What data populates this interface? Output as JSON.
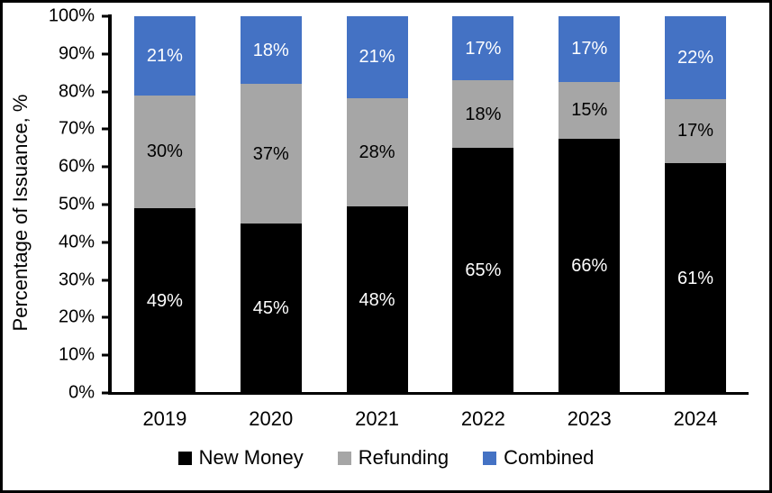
{
  "chart_data": {
    "type": "bar",
    "stacked": true,
    "title": "",
    "xlabel": "",
    "ylabel": "Percentage of Issuance, %",
    "ylim": [
      0,
      100
    ],
    "y_tick_step": 10,
    "y_tick_labels": [
      "0%",
      "10%",
      "20%",
      "30%",
      "40%",
      "50%",
      "60%",
      "70%",
      "80%",
      "90%",
      "100%"
    ],
    "grid": false,
    "legend_position": "bottom",
    "categories": [
      "2019",
      "2020",
      "2021",
      "2022",
      "2023",
      "2024"
    ],
    "series": [
      {
        "name": "New Money",
        "color": "#000000",
        "label_color": "#ffffff",
        "values": [
          49,
          45,
          48,
          65,
          66,
          61
        ],
        "labels": [
          "49%",
          "45%",
          "48%",
          "65%",
          "66%",
          "61%"
        ]
      },
      {
        "name": "Refunding",
        "color": "#A6A6A6",
        "label_color": "#000000",
        "values": [
          30,
          37,
          28,
          18,
          15,
          17
        ],
        "labels": [
          "30%",
          "37%",
          "28%",
          "18%",
          "15%",
          "17%"
        ]
      },
      {
        "name": "Combined",
        "color": "#4472C4",
        "label_color": "#ffffff",
        "values": [
          21,
          18,
          21,
          17,
          17,
          22
        ],
        "labels": [
          "21%",
          "18%",
          "21%",
          "17%",
          "17%",
          "22%"
        ]
      }
    ],
    "axis_color": "#000000"
  }
}
